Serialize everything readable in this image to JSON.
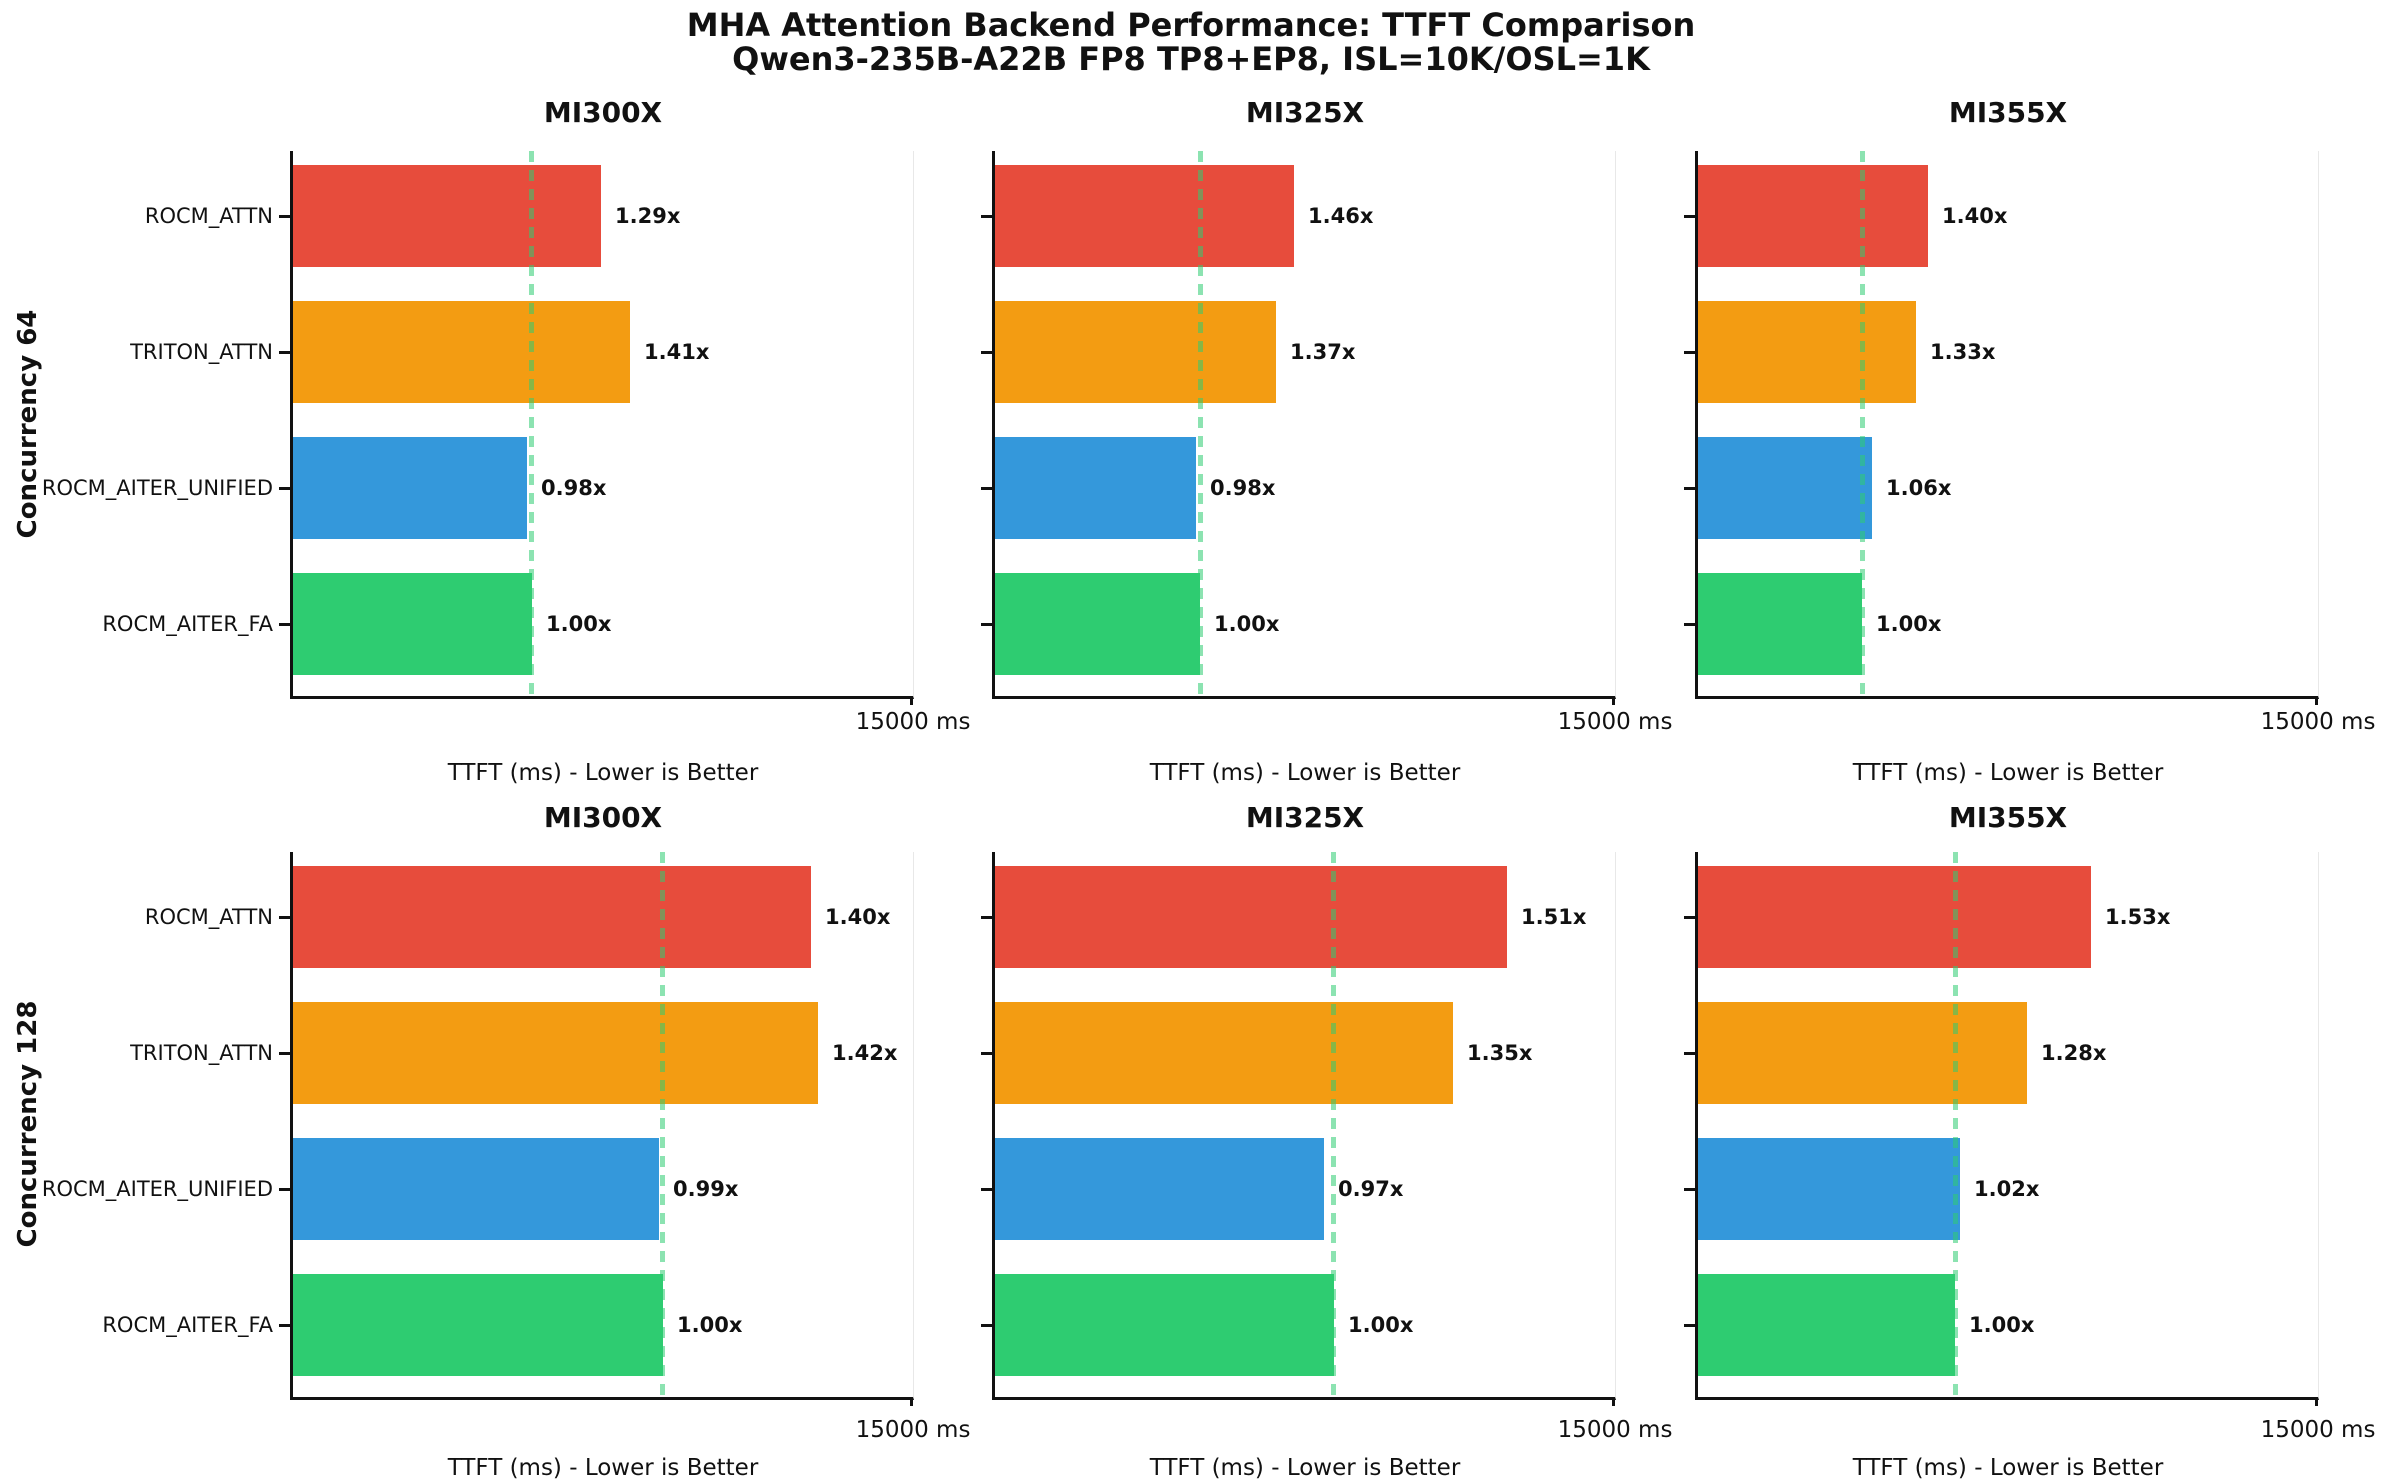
{
  "title": "MHA Attention Backend Performance: TTFT Comparison",
  "subtitle": "Qwen3-235B-A22B FP8 TP8+EP8, ISL=10K/OSL=1K",
  "chart_data": {
    "type": "bar",
    "orientation": "horizontal",
    "title": "MHA Attention Backend Performance: TTFT Comparison",
    "subtitle": "Qwen3-235B-A22B FP8 TP8+EP8, ISL=10K/OSL=1K",
    "xlabel": "TTFT (ms) - Lower is Better",
    "x_tick_label": "15000 ms",
    "xlim": [
      0,
      15000
    ],
    "grid": false,
    "legend": "none",
    "categories": [
      "ROCM_ATTN",
      "TRITON_ATTN",
      "ROCM_AITER_UNIFIED",
      "ROCM_AITER_FA"
    ],
    "bar_colors": [
      "#E74C3C",
      "#F39C12",
      "#3498DB",
      "#2ECC71"
    ],
    "baseline_line_color": "rgba(46,204,113,0.55)",
    "baseline_note": "dashed vertical line marks ROCM_AITER_FA 1.00x reference TTFT",
    "rows": [
      {
        "label": "Concurrency 64",
        "panels": [
          {
            "title": "MI300X",
            "baseline_ms": 5780,
            "values_ms": [
              7460,
              8150,
              5670,
              5780
            ],
            "labels": [
              "1.29x",
              "1.41x",
              "0.98x",
              "1.00x"
            ]
          },
          {
            "title": "MI325X",
            "baseline_ms": 4960,
            "values_ms": [
              7240,
              6800,
              4860,
              4960
            ],
            "labels": [
              "1.46x",
              "1.37x",
              "0.98x",
              "1.00x"
            ]
          },
          {
            "title": "MI355X",
            "baseline_ms": 3970,
            "values_ms": [
              5560,
              5280,
              4210,
              3970
            ],
            "labels": [
              "1.40x",
              "1.33x",
              "1.06x",
              "1.00x"
            ]
          }
        ]
      },
      {
        "label": "Concurrency 128",
        "panels": [
          {
            "title": "MI300X",
            "baseline_ms": 8950,
            "values_ms": [
              12530,
              12710,
              8860,
              8950
            ],
            "labels": [
              "1.40x",
              "1.42x",
              "0.99x",
              "1.00x"
            ]
          },
          {
            "title": "MI325X",
            "baseline_ms": 8200,
            "values_ms": [
              12380,
              11070,
              7950,
              8200
            ],
            "labels": [
              "1.51x",
              "1.35x",
              "0.97x",
              "1.00x"
            ]
          },
          {
            "title": "MI355X",
            "baseline_ms": 6220,
            "values_ms": [
              9520,
              7960,
              6340,
              6220
            ],
            "labels": [
              "1.53x",
              "1.28x",
              "1.02x",
              "1.00x"
            ]
          }
        ]
      }
    ]
  }
}
